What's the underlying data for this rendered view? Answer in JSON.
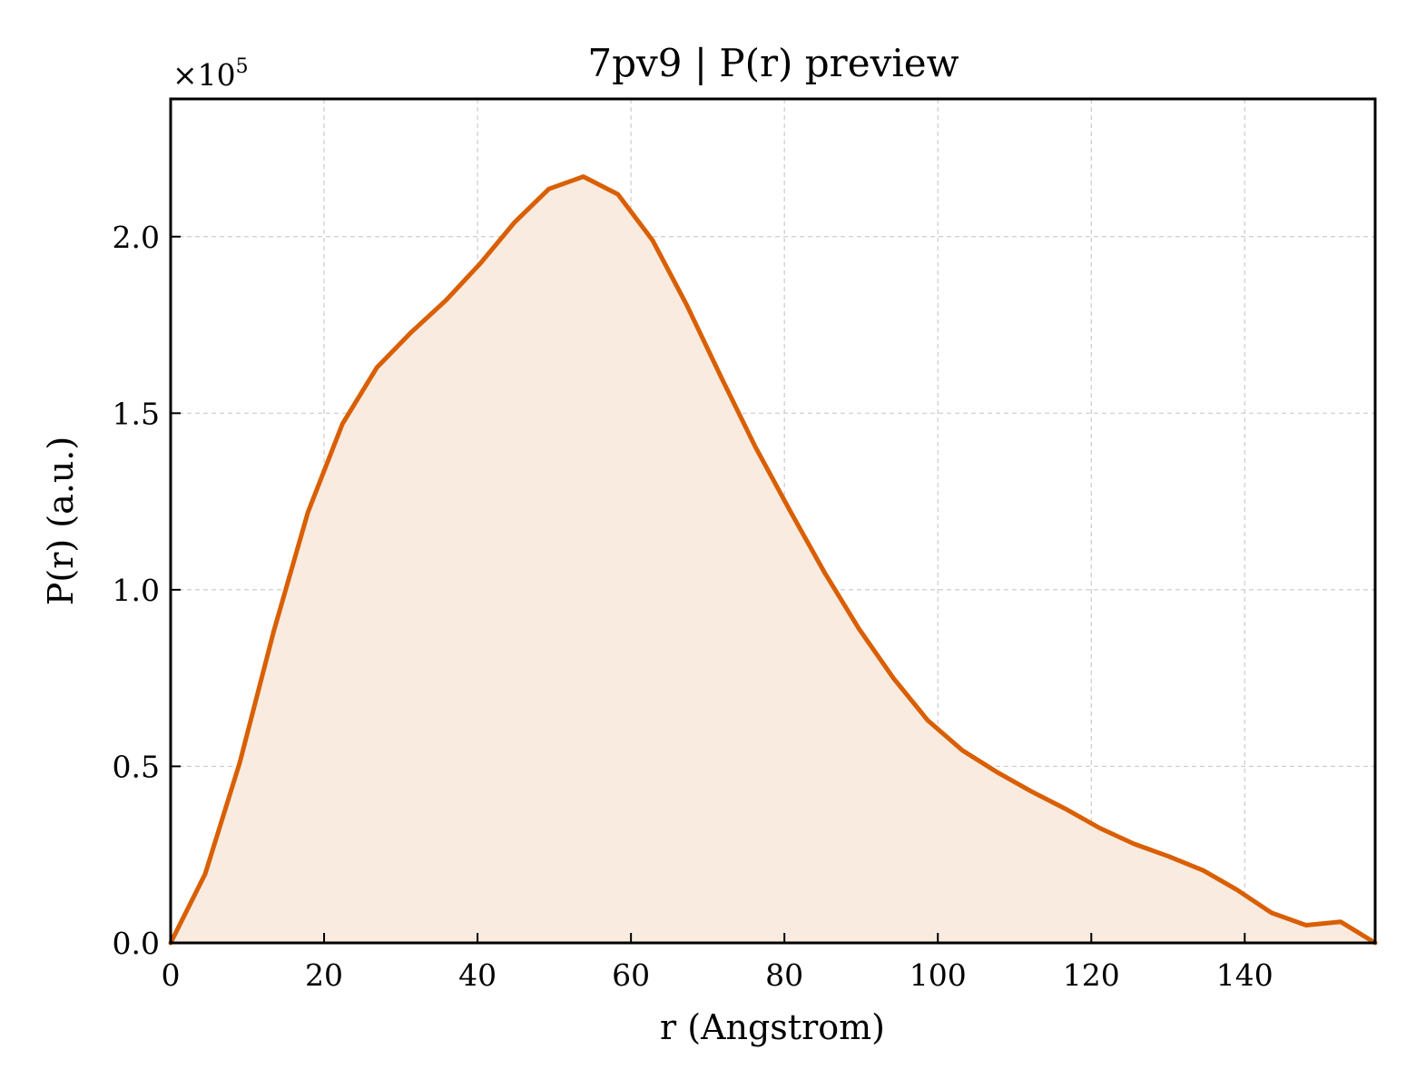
{
  "chart_data": {
    "type": "area",
    "title": "7pv9 | P(r) preview",
    "xlabel": "r (Angstrom)",
    "ylabel": "P(r) (a.u.)",
    "y_scale_factor_label": "×10",
    "y_scale_factor_exponent": "5",
    "xlim": [
      0,
      157
    ],
    "ylim": [
      0,
      2.39
    ],
    "x_ticks": [
      0,
      20,
      40,
      60,
      80,
      100,
      120,
      140
    ],
    "x_tick_labels": [
      "0",
      "20",
      "40",
      "60",
      "80",
      "100",
      "120",
      "140"
    ],
    "y_ticks": [
      0,
      0.5,
      1.0,
      1.5,
      2.0
    ],
    "y_tick_labels": [
      "0.0",
      "0.5",
      "1.0",
      "1.5",
      "2.0"
    ],
    "grid": true,
    "line_color": "#d95f02",
    "fill_color": "#f9ebe0",
    "series": [
      {
        "x": [
          0,
          4.5,
          9.0,
          13.4,
          17.9,
          22.4,
          26.9,
          31.4,
          35.9,
          40.4,
          44.8,
          49.3,
          53.8,
          58.3,
          62.8,
          67.3,
          71.8,
          76.2,
          80.7,
          85.2,
          89.7,
          94.2,
          98.7,
          103.2,
          107.6,
          112.1,
          116.6,
          121.1,
          125.6,
          130.1,
          134.6,
          139.0,
          143.5,
          148.0,
          152.5,
          157.0
        ],
        "values": [
          0.0,
          0.195,
          0.51,
          0.88,
          1.22,
          1.47,
          1.63,
          1.73,
          1.82,
          1.925,
          2.04,
          2.135,
          2.17,
          2.12,
          1.99,
          1.805,
          1.6,
          1.405,
          1.225,
          1.05,
          0.89,
          0.75,
          0.63,
          0.545,
          0.485,
          0.43,
          0.38,
          0.325,
          0.28,
          0.245,
          0.205,
          0.15,
          0.085,
          0.05,
          0.06,
          0.0
        ]
      }
    ]
  }
}
